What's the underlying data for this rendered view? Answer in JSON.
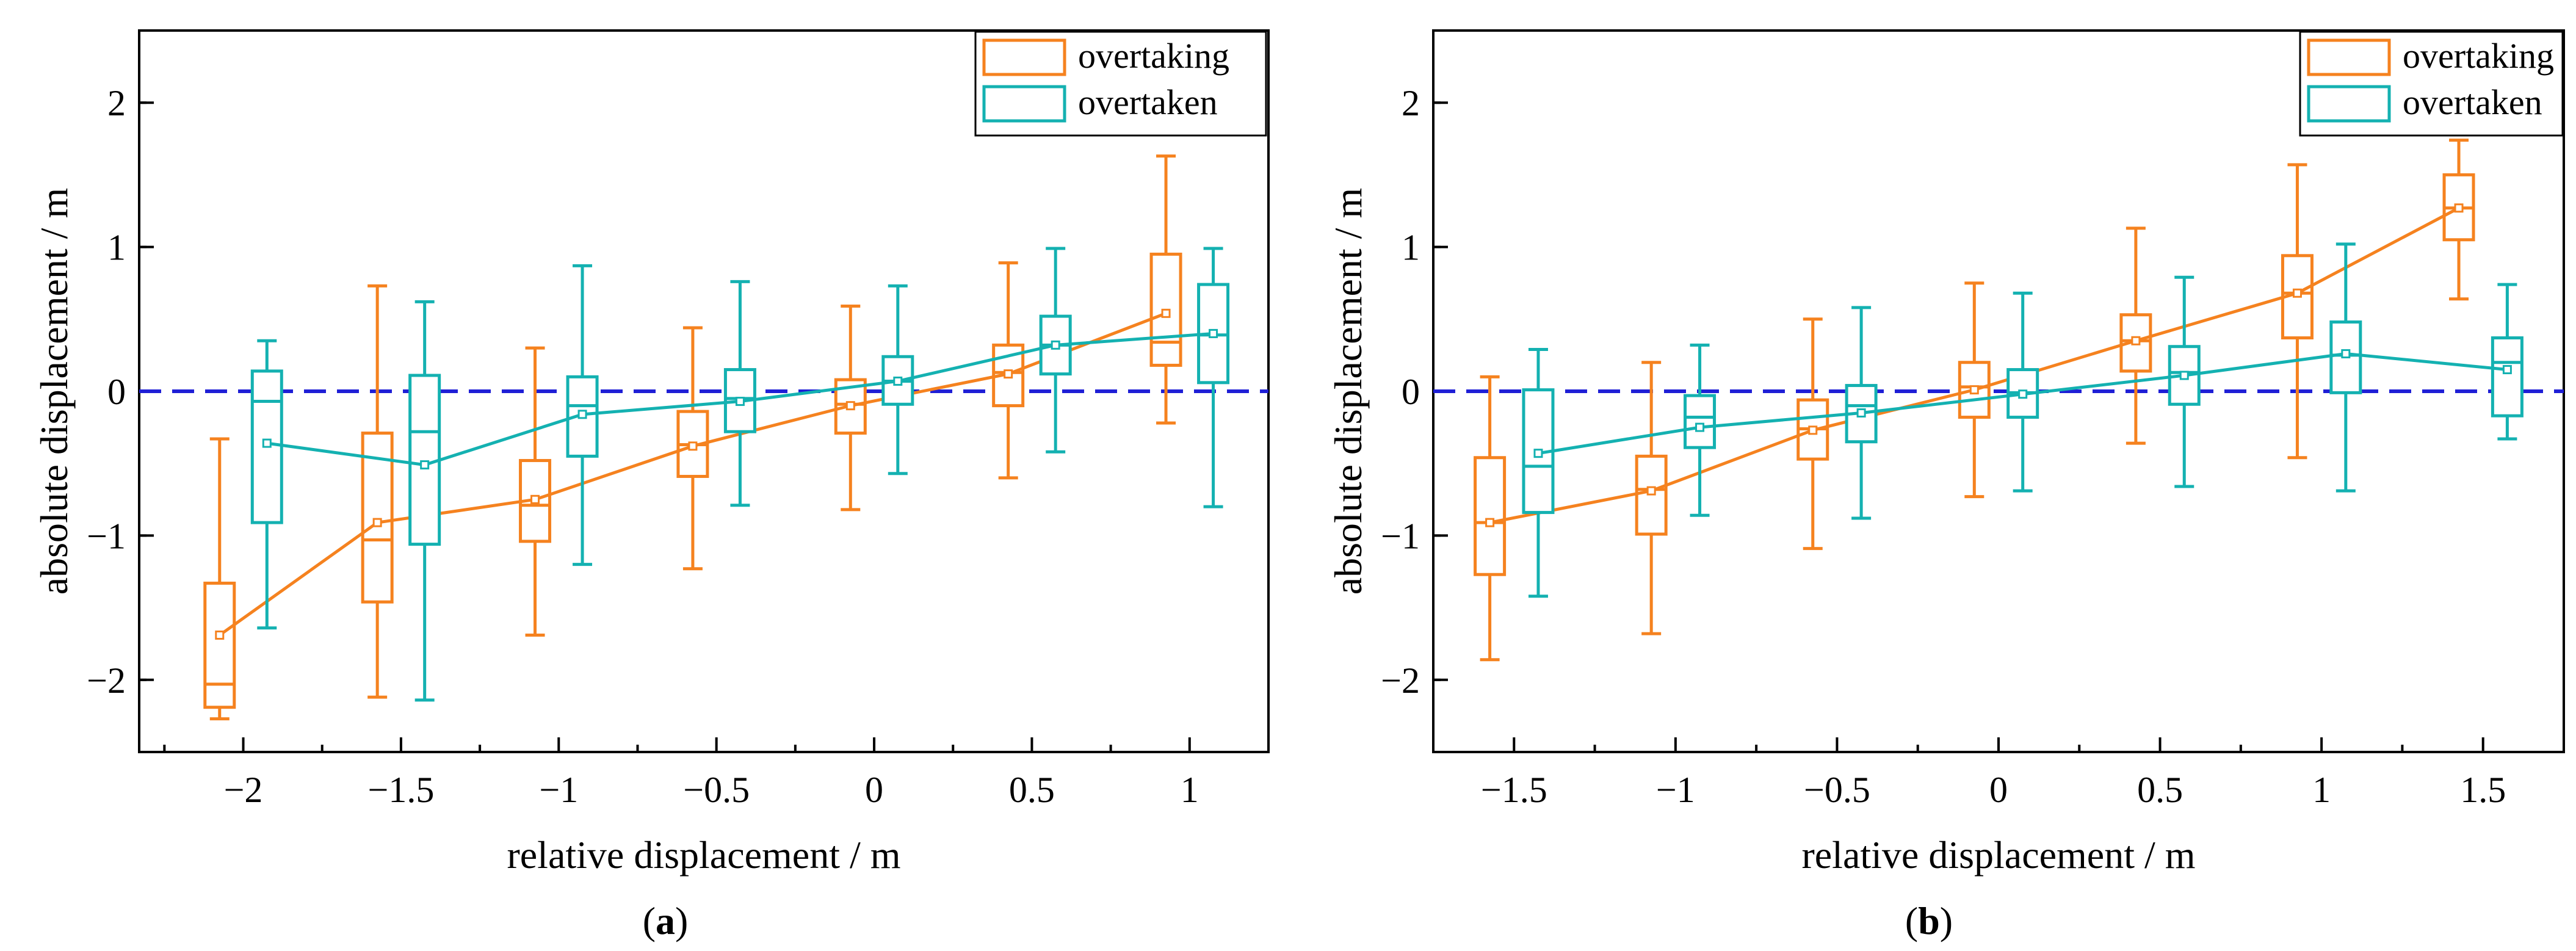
{
  "figure": {
    "colors": {
      "overtaking": "#f5821f",
      "overtaken": "#14b1b1",
      "reference": "#1f1fd6",
      "axis": "#000000"
    }
  },
  "chart_data": [
    {
      "type": "box",
      "panel_label": "a",
      "caption_open": "(",
      "caption_close": ")",
      "xlabel": "relative displacement / m",
      "ylabel": "absolute displacement / m",
      "xlim": [
        -2.33,
        1.25
      ],
      "ylim": [
        -2.5,
        2.5
      ],
      "xticks": [
        -2,
        -1.5,
        -1,
        -0.5,
        0,
        0.5,
        1
      ],
      "xtick_labels": [
        "−2",
        "−1.5",
        "−1",
        "−0.5",
        "0",
        "0.5",
        "1"
      ],
      "yticks": [
        -2,
        -1,
        0,
        1,
        2
      ],
      "ytick_labels": [
        "−2",
        "−1",
        "0",
        "1",
        "2"
      ],
      "reference_line": 0,
      "legend": [
        "overtaking",
        "overtaken"
      ],
      "legend_position": "top-right",
      "series": [
        {
          "name": "overtaking",
          "box_offset": -0.075,
          "boxes": [
            {
              "x": -2.0,
              "wlo": -2.27,
              "q1": -2.19,
              "med": -2.03,
              "q3": -1.33,
              "whi": -0.33,
              "mean": -1.69
            },
            {
              "x": -1.5,
              "wlo": -2.12,
              "q1": -1.46,
              "med": -1.03,
              "q3": -0.29,
              "whi": 0.73,
              "mean": -0.91
            },
            {
              "x": -1.0,
              "wlo": -1.69,
              "q1": -1.04,
              "med": -0.79,
              "q3": -0.48,
              "whi": 0.3,
              "mean": -0.75
            },
            {
              "x": -0.5,
              "wlo": -1.23,
              "q1": -0.59,
              "med": -0.37,
              "q3": -0.14,
              "whi": 0.44,
              "mean": -0.38
            },
            {
              "x": 0.0,
              "wlo": -0.82,
              "q1": -0.29,
              "med": -0.09,
              "q3": 0.08,
              "whi": 0.59,
              "mean": -0.1
            },
            {
              "x": 0.5,
              "wlo": -0.6,
              "q1": -0.1,
              "med": 0.13,
              "q3": 0.32,
              "whi": 0.89,
              "mean": 0.12
            },
            {
              "x": 1.0,
              "wlo": -0.22,
              "q1": 0.18,
              "med": 0.34,
              "q3": 0.95,
              "whi": 1.63,
              "mean": 0.54
            }
          ]
        },
        {
          "name": "overtaken",
          "box_offset": 0.075,
          "boxes": [
            {
              "x": -2.0,
              "wlo": -1.64,
              "q1": -0.91,
              "med": -0.07,
              "q3": 0.14,
              "whi": 0.35,
              "mean": -0.36
            },
            {
              "x": -1.5,
              "wlo": -2.14,
              "q1": -1.06,
              "med": -0.28,
              "q3": 0.11,
              "whi": 0.62,
              "mean": -0.51
            },
            {
              "x": -1.0,
              "wlo": -1.2,
              "q1": -0.45,
              "med": -0.1,
              "q3": 0.1,
              "whi": 0.87,
              "mean": -0.16
            },
            {
              "x": -0.5,
              "wlo": -0.79,
              "q1": -0.28,
              "med": -0.05,
              "q3": 0.15,
              "whi": 0.76,
              "mean": -0.07
            },
            {
              "x": 0.0,
              "wlo": -0.57,
              "q1": -0.09,
              "med": 0.07,
              "q3": 0.24,
              "whi": 0.73,
              "mean": 0.07
            },
            {
              "x": 0.5,
              "wlo": -0.42,
              "q1": 0.12,
              "med": 0.32,
              "q3": 0.52,
              "whi": 0.99,
              "mean": 0.32
            },
            {
              "x": 1.0,
              "wlo": -0.8,
              "q1": 0.06,
              "med": 0.39,
              "q3": 0.74,
              "whi": 0.99,
              "mean": 0.4
            }
          ]
        }
      ]
    },
    {
      "type": "box",
      "panel_label": "b",
      "caption_open": "(",
      "caption_close": ")",
      "xlabel": "relative displacement / m",
      "ylabel": "absolute displacement / m",
      "xlim": [
        -1.75,
        1.75
      ],
      "ylim": [
        -2.5,
        2.5
      ],
      "xticks": [
        -1.5,
        -1,
        -0.5,
        0,
        0.5,
        1,
        1.5
      ],
      "xtick_labels": [
        "−1.5",
        "−1",
        "−0.5",
        "0",
        "0.5",
        "1",
        "1.5"
      ],
      "yticks": [
        -2,
        -1,
        0,
        1,
        2
      ],
      "ytick_labels": [
        "−2",
        "−1",
        "0",
        "1",
        "2"
      ],
      "reference_line": 0,
      "legend": [
        "overtaking",
        "overtaken"
      ],
      "legend_position": "top-right",
      "series": [
        {
          "name": "overtaking",
          "box_offset": -0.075,
          "boxes": [
            {
              "x": -1.5,
              "wlo": -1.86,
              "q1": -1.27,
              "med": -0.91,
              "q3": -0.46,
              "whi": 0.1,
              "mean": -0.91
            },
            {
              "x": -1.0,
              "wlo": -1.68,
              "q1": -0.99,
              "med": -0.68,
              "q3": -0.45,
              "whi": 0.2,
              "mean": -0.69
            },
            {
              "x": -0.5,
              "wlo": -1.09,
              "q1": -0.47,
              "med": -0.26,
              "q3": -0.06,
              "whi": 0.5,
              "mean": -0.27
            },
            {
              "x": 0.0,
              "wlo": -0.73,
              "q1": -0.18,
              "med": 0.03,
              "q3": 0.2,
              "whi": 0.75,
              "mean": 0.01
            },
            {
              "x": 0.5,
              "wlo": -0.36,
              "q1": 0.14,
              "med": 0.35,
              "q3": 0.53,
              "whi": 1.13,
              "mean": 0.35
            },
            {
              "x": 1.0,
              "wlo": -0.46,
              "q1": 0.37,
              "med": 0.68,
              "q3": 0.94,
              "whi": 1.57,
              "mean": 0.68
            },
            {
              "x": 1.5,
              "wlo": 0.64,
              "q1": 1.05,
              "med": 1.27,
              "q3": 1.5,
              "whi": 1.74,
              "mean": 1.27
            }
          ]
        },
        {
          "name": "overtaken",
          "box_offset": 0.075,
          "boxes": [
            {
              "x": -1.5,
              "wlo": -1.42,
              "q1": -0.84,
              "med": -0.52,
              "q3": 0.01,
              "whi": 0.29,
              "mean": -0.43
            },
            {
              "x": -1.0,
              "wlo": -0.86,
              "q1": -0.39,
              "med": -0.18,
              "q3": -0.03,
              "whi": 0.32,
              "mean": -0.25
            },
            {
              "x": -0.5,
              "wlo": -0.88,
              "q1": -0.35,
              "med": -0.1,
              "q3": 0.04,
              "whi": 0.58,
              "mean": -0.15
            },
            {
              "x": 0.0,
              "wlo": -0.69,
              "q1": -0.18,
              "med": -0.01,
              "q3": 0.15,
              "whi": 0.68,
              "mean": -0.02
            },
            {
              "x": 0.5,
              "wlo": -0.66,
              "q1": -0.09,
              "med": 0.13,
              "q3": 0.31,
              "whi": 0.79,
              "mean": 0.11
            },
            {
              "x": 1.0,
              "wlo": -0.69,
              "q1": -0.01,
              "med": 0.25,
              "q3": 0.48,
              "whi": 1.02,
              "mean": 0.26
            },
            {
              "x": 1.5,
              "wlo": -0.33,
              "q1": -0.17,
              "med": 0.2,
              "q3": 0.37,
              "whi": 0.74,
              "mean": 0.15
            }
          ]
        }
      ]
    }
  ]
}
